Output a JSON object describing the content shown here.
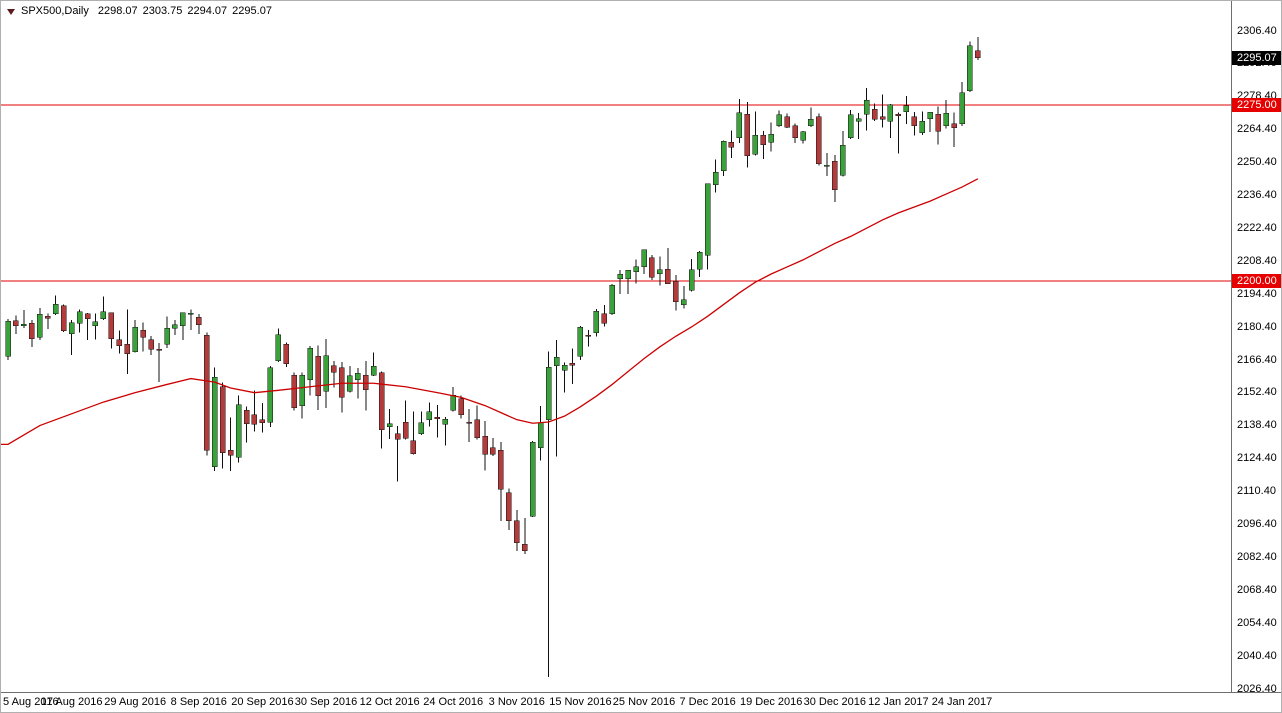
{
  "quote_bar": {
    "symbol": "SPX500,Daily",
    "open": "2298.07",
    "high": "2303.75",
    "low": "2294.07",
    "close": "2295.07"
  },
  "price_axis": {
    "labels": [
      "2306.40",
      "2292.40",
      "2278.40",
      "2264.40",
      "2250.40",
      "2236.40",
      "2222.40",
      "2208.40",
      "2194.40",
      "2180.40",
      "2166.40",
      "2152.40",
      "2138.40",
      "2124.40",
      "2110.40",
      "2096.40",
      "2082.40",
      "2068.40",
      "2054.40",
      "2040.40",
      "2026.40"
    ],
    "current_price_tag": {
      "label": "2295.07",
      "price": 2295.07,
      "bg": "#000000"
    },
    "line_tags": [
      {
        "label": "2275.00",
        "price": 2275.0,
        "bg": "#e60000"
      },
      {
        "label": "2200.00",
        "price": 2200.0,
        "bg": "#e60000"
      }
    ]
  },
  "time_axis": {
    "labels": [
      {
        "text": "5 Aug 2016",
        "i": 0
      },
      {
        "text": "17 Aug 2016",
        "i": 8
      },
      {
        "text": "29 Aug 2016",
        "i": 16
      },
      {
        "text": "8 Sep 2016",
        "i": 24
      },
      {
        "text": "20 Sep 2016",
        "i": 32
      },
      {
        "text": "30 Sep 2016",
        "i": 40
      },
      {
        "text": "12 Oct 2016",
        "i": 48
      },
      {
        "text": "24 Oct 2016",
        "i": 56
      },
      {
        "text": "3 Nov 2016",
        "i": 64
      },
      {
        "text": "15 Nov 2016",
        "i": 72
      },
      {
        "text": "25 Nov 2016",
        "i": 80
      },
      {
        "text": "7 Dec 2016",
        "i": 88
      },
      {
        "text": "19 Dec 2016",
        "i": 96
      },
      {
        "text": "30 Dec 2016",
        "i": 104
      },
      {
        "text": "12 Jan 2017",
        "i": 112
      },
      {
        "text": "24 Jan 2017",
        "i": 120
      }
    ]
  },
  "chart_data": {
    "type": "candlestick",
    "title": "SPX500,Daily",
    "symbol": "SPX500",
    "timeframe": "Daily",
    "ylim": [
      2026.4,
      2306.4
    ],
    "axis_step": 14.0,
    "grid": false,
    "hlines": [
      2275.0,
      2200.0
    ],
    "colors": {
      "up": "#3ba13b",
      "down": "#b23b3b",
      "wick": "#101010",
      "ma": "#cc0000",
      "hline": "#e60000"
    },
    "candles": [
      [
        "5 Aug",
        2168.0,
        2183.9,
        2166.5,
        2182.9
      ],
      [
        "8 Aug",
        2183.0,
        2185.4,
        2177.5,
        2180.9
      ],
      [
        "9 Aug",
        2181.0,
        2187.7,
        2180.0,
        2181.7
      ],
      [
        "10 Aug",
        2182.0,
        2183.4,
        2172.0,
        2175.5
      ],
      [
        "11 Aug",
        2176.0,
        2188.5,
        2175.0,
        2185.8
      ],
      [
        "12 Aug",
        2185.0,
        2186.1,
        2179.5,
        2184.1
      ],
      [
        "15 Aug",
        2186.0,
        2193.8,
        2185.5,
        2190.2
      ],
      [
        "16 Aug",
        2189.5,
        2190.1,
        2178.3,
        2178.9
      ],
      [
        "17 Aug",
        2177.5,
        2183.5,
        2168.5,
        2182.2
      ],
      [
        "18 Aug",
        2182.0,
        2187.9,
        2178.0,
        2187.0
      ],
      [
        "19 Aug",
        2186.0,
        2186.5,
        2175.0,
        2183.9
      ],
      [
        "22 Aug",
        2181.0,
        2186.2,
        2175.1,
        2182.6
      ],
      [
        "23 Aug",
        2184.0,
        2193.4,
        2183.5,
        2186.9
      ],
      [
        "24 Aug",
        2186.5,
        2186.7,
        2171.4,
        2175.4
      ],
      [
        "25 Aug",
        2175.0,
        2179.0,
        2169.1,
        2172.5
      ],
      [
        "26 Aug",
        2173.0,
        2187.9,
        2160.4,
        2169.0
      ],
      [
        "29 Aug",
        2170.0,
        2183.5,
        2169.5,
        2180.4
      ],
      [
        "30 Aug",
        2179.0,
        2182.3,
        2170.1,
        2176.1
      ],
      [
        "31 Aug",
        2175.0,
        2176.6,
        2168.5,
        2171.0
      ],
      [
        "1 Sep",
        2171.0,
        2173.6,
        2157.1,
        2170.9
      ],
      [
        "2 Sep",
        2173.0,
        2184.9,
        2171.6,
        2180.0
      ],
      [
        "5 Sep",
        2180.0,
        2183.5,
        2177.0,
        2181.5
      ],
      [
        "6 Sep",
        2181.0,
        2186.6,
        2175.0,
        2186.5
      ],
      [
        "7 Sep",
        2186.0,
        2187.9,
        2179.1,
        2186.2
      ],
      [
        "8 Sep",
        2184.5,
        2185.9,
        2177.5,
        2181.3
      ],
      [
        "9 Sep",
        2177.0,
        2178.0,
        2125.8,
        2128.0
      ],
      [
        "12 Sep",
        2121.0,
        2163.3,
        2119.1,
        2159.0
      ],
      [
        "13 Sep",
        2155.0,
        2156.8,
        2120.3,
        2127.0
      ],
      [
        "14 Sep",
        2128.0,
        2141.9,
        2119.1,
        2125.8
      ],
      [
        "15 Sep",
        2125.0,
        2151.3,
        2122.7,
        2147.3
      ],
      [
        "16 Sep",
        2145.0,
        2146.6,
        2131.2,
        2139.2
      ],
      [
        "19 Sep",
        2143.0,
        2153.5,
        2135.9,
        2139.1
      ],
      [
        "20 Sep",
        2141.0,
        2148.1,
        2135.5,
        2139.8
      ],
      [
        "21 Sep",
        2140.0,
        2163.8,
        2137.8,
        2163.1
      ],
      [
        "22 Sep",
        2166.0,
        2179.9,
        2165.5,
        2177.2
      ],
      [
        "23 Sep",
        2173.0,
        2173.8,
        2163.4,
        2164.7
      ],
      [
        "26 Sep",
        2160.0,
        2161.1,
        2145.0,
        2146.1
      ],
      [
        "27 Sep",
        2147.0,
        2161.1,
        2141.6,
        2159.9
      ],
      [
        "28 Sep",
        2158.0,
        2172.4,
        2151.4,
        2171.4
      ],
      [
        "29 Sep",
        2168.0,
        2172.6,
        2145.2,
        2151.1
      ],
      [
        "30 Sep",
        2153.0,
        2175.3,
        2146.0,
        2168.3
      ],
      [
        "3 Oct",
        2164.0,
        2166.0,
        2154.8,
        2161.2
      ],
      [
        "4 Oct",
        2163.0,
        2165.5,
        2144.0,
        2150.5
      ],
      [
        "5 Oct",
        2153.0,
        2163.8,
        2152.5,
        2159.7
      ],
      [
        "6 Oct",
        2158.0,
        2162.9,
        2150.0,
        2160.8
      ],
      [
        "7 Oct",
        2160.0,
        2165.9,
        2144.9,
        2153.7
      ],
      [
        "10 Oct",
        2160.0,
        2169.6,
        2159.5,
        2163.7
      ],
      [
        "11 Oct",
        2161.0,
        2161.6,
        2128.8,
        2136.7
      ],
      [
        "12 Oct",
        2138.0,
        2145.6,
        2132.8,
        2139.2
      ],
      [
        "13 Oct",
        2135.0,
        2138.3,
        2114.7,
        2132.6
      ],
      [
        "14 Oct",
        2140.0,
        2149.2,
        2132.5,
        2133.0
      ],
      [
        "17 Oct",
        2132.0,
        2144.4,
        2126.2,
        2126.5
      ],
      [
        "18 Oct",
        2135.0,
        2144.4,
        2134.5,
        2139.6
      ],
      [
        "19 Oct",
        2141.0,
        2148.4,
        2138.0,
        2144.3
      ],
      [
        "20 Oct",
        2142.0,
        2147.2,
        2133.4,
        2141.3
      ],
      [
        "21 Oct",
        2139.0,
        2142.2,
        2130.0,
        2141.2
      ],
      [
        "24 Oct",
        2145.0,
        2155.0,
        2144.5,
        2151.3
      ],
      [
        "25 Oct",
        2150.0,
        2151.4,
        2141.6,
        2143.2
      ],
      [
        "26 Oct",
        2140.0,
        2145.6,
        2131.6,
        2139.4
      ],
      [
        "27 Oct",
        2141.0,
        2147.1,
        2132.5,
        2133.3
      ],
      [
        "28 Oct",
        2134.0,
        2140.4,
        2119.4,
        2126.4
      ],
      [
        "31 Oct",
        2129.0,
        2133.2,
        2125.5,
        2126.2
      ],
      [
        "1 Nov",
        2128.0,
        2131.5,
        2097.9,
        2111.5
      ],
      [
        "2 Nov",
        2110.0,
        2111.8,
        2094.0,
        2097.9
      ],
      [
        "3 Nov",
        2098.0,
        2102.6,
        2085.2,
        2088.7
      ],
      [
        "4 Nov",
        2088.0,
        2099.1,
        2083.8,
        2085.2
      ],
      [
        "7 Nov",
        2100.0,
        2132.0,
        2099.5,
        2131.5
      ],
      [
        "8 Nov",
        2129.0,
        2146.9,
        2123.6,
        2139.6
      ],
      [
        "9 Nov",
        2141.0,
        2170.1,
        2031.5,
        2163.3
      ],
      [
        "10 Nov",
        2164.0,
        2175.0,
        2125.4,
        2167.5
      ],
      [
        "11 Nov",
        2162.0,
        2165.3,
        2152.5,
        2164.2
      ],
      [
        "14 Nov",
        2165.0,
        2171.4,
        2156.1,
        2164.2
      ],
      [
        "15 Nov",
        2168.0,
        2180.8,
        2166.4,
        2180.4
      ],
      [
        "16 Nov",
        2177.0,
        2179.2,
        2172.2,
        2176.9
      ],
      [
        "17 Nov",
        2178.0,
        2188.1,
        2176.4,
        2187.1
      ],
      [
        "18 Nov",
        2186.0,
        2189.9,
        2180.6,
        2182.0
      ],
      [
        "21 Nov",
        2186.0,
        2198.7,
        2185.5,
        2198.2
      ],
      [
        "22 Nov",
        2201.0,
        2204.8,
        2194.5,
        2202.9
      ],
      [
        "23 Nov",
        2201.0,
        2204.7,
        2194.5,
        2204.5
      ],
      [
        "24 Nov",
        2204.0,
        2209.1,
        2199.0,
        2206.0
      ],
      [
        "25 Nov",
        2206.0,
        2213.4,
        2203.0,
        2213.3
      ],
      [
        "28 Nov",
        2210.0,
        2211.1,
        2200.4,
        2201.7
      ],
      [
        "29 Nov",
        2203.0,
        2210.5,
        2198.2,
        2204.7
      ],
      [
        "30 Nov",
        2205.0,
        2214.1,
        2198.8,
        2198.9
      ],
      [
        "1 Dec",
        2200.0,
        2202.6,
        2187.4,
        2191.1
      ],
      [
        "2 Dec",
        2190.0,
        2197.9,
        2188.4,
        2192.0
      ],
      [
        "5 Dec",
        2196.0,
        2209.4,
        2195.5,
        2204.7
      ],
      [
        "6 Dec",
        2205.0,
        2212.8,
        2201.7,
        2212.2
      ],
      [
        "7 Dec",
        2211.0,
        2241.6,
        2205.0,
        2241.4
      ],
      [
        "8 Dec",
        2241.0,
        2251.7,
        2237.6,
        2246.2
      ],
      [
        "9 Dec",
        2247.0,
        2259.8,
        2244.7,
        2259.5
      ],
      [
        "12 Dec",
        2259.0,
        2264.0,
        2252.4,
        2257.0
      ],
      [
        "13 Dec",
        2261.0,
        2277.5,
        2258.8,
        2271.7
      ],
      [
        "14 Dec",
        2271.0,
        2276.2,
        2248.4,
        2253.3
      ],
      [
        "15 Dec",
        2254.0,
        2272.1,
        2253.4,
        2262.0
      ],
      [
        "16 Dec",
        2262.0,
        2263.8,
        2252.0,
        2258.1
      ],
      [
        "19 Dec",
        2259.0,
        2267.5,
        2255.1,
        2262.5
      ],
      [
        "20 Dec",
        2266.0,
        2272.6,
        2265.5,
        2270.8
      ],
      [
        "21 Dec",
        2270.0,
        2271.2,
        2265.2,
        2265.5
      ],
      [
        "22 Dec",
        2266.0,
        2267.0,
        2258.8,
        2261.0
      ],
      [
        "23 Dec",
        2260.0,
        2263.8,
        2258.5,
        2263.6
      ],
      [
        "27 Dec",
        2266.0,
        2273.8,
        2265.5,
        2268.9
      ],
      [
        "28 Dec",
        2270.0,
        2271.3,
        2249.1,
        2249.9
      ],
      [
        "29 Dec",
        2249.0,
        2254.5,
        2244.6,
        2249.3
      ],
      [
        "30 Dec",
        2251.0,
        2253.6,
        2233.6,
        2238.8
      ],
      [
        "3 Jan",
        2245.0,
        2263.9,
        2244.5,
        2257.8
      ],
      [
        "4 Jan",
        2261.0,
        2272.8,
        2260.5,
        2270.8
      ],
      [
        "5 Jan",
        2268.0,
        2271.5,
        2260.5,
        2269.0
      ],
      [
        "6 Jan",
        2271.0,
        2282.1,
        2264.1,
        2277.0
      ],
      [
        "9 Jan",
        2273.0,
        2275.5,
        2268.0,
        2268.9
      ],
      [
        "10 Jan",
        2270.0,
        2279.3,
        2265.3,
        2268.9
      ],
      [
        "11 Jan",
        2268.0,
        2275.3,
        2260.8,
        2275.0
      ],
      [
        "12 Jan",
        2271.0,
        2271.8,
        2254.3,
        2270.4
      ],
      [
        "13 Jan",
        2272.0,
        2278.7,
        2266.9,
        2274.6
      ],
      [
        "16 Jan",
        2270.0,
        2272.0,
        2262.0,
        2266.0
      ],
      [
        "17 Jan",
        2263.0,
        2272.1,
        2262.1,
        2267.9
      ],
      [
        "18 Jan",
        2269.0,
        2272.0,
        2263.4,
        2271.9
      ],
      [
        "19 Jan",
        2271.0,
        2274.3,
        2258.1,
        2263.7
      ],
      [
        "20 Jan",
        2266.0,
        2277.0,
        2265.0,
        2271.3
      ],
      [
        "23 Jan",
        2267.0,
        2271.8,
        2257.0,
        2265.2
      ],
      [
        "24 Jan",
        2267.0,
        2284.6,
        2266.0,
        2280.1
      ],
      [
        "25 Jan",
        2281.0,
        2302.0,
        2280.5,
        2300.2
      ],
      [
        "26 Jan",
        2298.07,
        2303.75,
        2294.07,
        2295.07
      ]
    ],
    "ma_line": [
      [
        0,
        2130.5
      ],
      [
        4,
        2138.5
      ],
      [
        8,
        2143.5
      ],
      [
        12,
        2148.5
      ],
      [
        16,
        2152.5
      ],
      [
        20,
        2156.0
      ],
      [
        23,
        2158.5
      ],
      [
        26,
        2157.0
      ],
      [
        28,
        2154.5
      ],
      [
        31,
        2152.5
      ],
      [
        34,
        2153.5
      ],
      [
        38,
        2155.0
      ],
      [
        42,
        2156.5
      ],
      [
        46,
        2156.5
      ],
      [
        50,
        2155.0
      ],
      [
        54,
        2152.5
      ],
      [
        57,
        2150.5
      ],
      [
        60,
        2147.0
      ],
      [
        62,
        2144.0
      ],
      [
        64,
        2141.0
      ],
      [
        66,
        2139.5
      ],
      [
        68,
        2140.0
      ],
      [
        70,
        2142.5
      ],
      [
        72,
        2146.5
      ],
      [
        74,
        2151.0
      ],
      [
        76,
        2156.0
      ],
      [
        78,
        2161.5
      ],
      [
        80,
        2167.0
      ],
      [
        82,
        2172.0
      ],
      [
        84,
        2176.5
      ],
      [
        86,
        2180.5
      ],
      [
        88,
        2185.0
      ],
      [
        90,
        2190.0
      ],
      [
        92,
        2195.0
      ],
      [
        94,
        2199.5
      ],
      [
        96,
        2203.0
      ],
      [
        98,
        2206.0
      ],
      [
        100,
        2209.0
      ],
      [
        102,
        2212.5
      ],
      [
        104,
        2216.0
      ],
      [
        106,
        2219.0
      ],
      [
        108,
        2222.5
      ],
      [
        110,
        2226.0
      ],
      [
        112,
        2229.0
      ],
      [
        114,
        2231.5
      ],
      [
        116,
        2234.0
      ],
      [
        118,
        2237.0
      ],
      [
        120,
        2240.0
      ],
      [
        122,
        2243.5
      ]
    ]
  }
}
